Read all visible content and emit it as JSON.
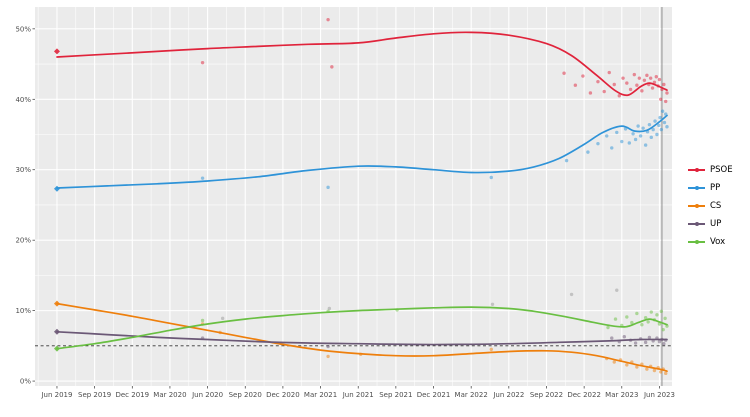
{
  "page": {
    "background": "#ffffff"
  },
  "chart_data": {
    "type": "scatter",
    "title": "",
    "xlabel": "",
    "ylabel": "",
    "legend_position": "right",
    "panel_background": "#ebebeb",
    "grid_color": "#ffffff",
    "tick_label_color": "#4d4d4d",
    "xlim": [
      -1.75,
      49.0
    ],
    "ylim": [
      -0.7,
      53.1
    ],
    "x_unit": "months since Jun 2019",
    "y_unit": "percent",
    "x_ticks": [
      {
        "month": 0,
        "label": "Jun 2019"
      },
      {
        "month": 3,
        "label": "Sep 2019"
      },
      {
        "month": 6,
        "label": "Dec 2019"
      },
      {
        "month": 9,
        "label": "Mar 2020"
      },
      {
        "month": 12,
        "label": "Jun 2020"
      },
      {
        "month": 15,
        "label": "Sep 2020"
      },
      {
        "month": 18,
        "label": "Dec 2020"
      },
      {
        "month": 21,
        "label": "Mar 2021"
      },
      {
        "month": 24,
        "label": "Jun 2021"
      },
      {
        "month": 27,
        "label": "Sep 2021"
      },
      {
        "month": 30,
        "label": "Dec 2021"
      },
      {
        "month": 33,
        "label": "Mar 2022"
      },
      {
        "month": 36,
        "label": "Jun 2022"
      },
      {
        "month": 39,
        "label": "Sep 2022"
      },
      {
        "month": 42,
        "label": "Dec 2022"
      },
      {
        "month": 45,
        "label": "Mar 2023"
      },
      {
        "month": 48,
        "label": "Jun 2023"
      }
    ],
    "y_ticks": [
      {
        "value": 0,
        "label": "0%"
      },
      {
        "value": 10,
        "label": "10%"
      },
      {
        "value": 20,
        "label": "20%"
      },
      {
        "value": 30,
        "label": "30%"
      },
      {
        "value": 40,
        "label": "40%"
      },
      {
        "value": 50,
        "label": "50%"
      }
    ],
    "reference_lines": {
      "dashed_hline_pct": 5,
      "vline_month": 48.2
    },
    "series": [
      {
        "name": "PSOE",
        "label": "PSOE",
        "color": "#e0233b",
        "start_marker": [
          0,
          46.8
        ],
        "trend": [
          [
            0,
            46.0
          ],
          [
            4,
            46.4
          ],
          [
            8,
            46.8
          ],
          [
            12,
            47.2
          ],
          [
            16,
            47.5
          ],
          [
            20,
            47.8
          ],
          [
            24,
            48.0
          ],
          [
            27,
            48.7
          ],
          [
            30,
            49.3
          ],
          [
            33,
            49.5
          ],
          [
            36,
            49.1
          ],
          [
            39,
            47.9
          ],
          [
            41,
            46.2
          ],
          [
            43,
            43.4
          ],
          [
            44.5,
            41.2
          ],
          [
            45.5,
            40.6
          ],
          [
            46.5,
            41.8
          ],
          [
            47.2,
            42.3
          ],
          [
            48,
            41.8
          ],
          [
            48.6,
            41.3
          ]
        ],
        "polls": [
          [
            11.6,
            45.2
          ],
          [
            21.6,
            51.3
          ],
          [
            21.9,
            44.6
          ],
          [
            40.4,
            43.7
          ],
          [
            41.3,
            42.0
          ],
          [
            41.9,
            43.3
          ],
          [
            42.5,
            40.9
          ],
          [
            43.1,
            42.5
          ],
          [
            43.6,
            41.1
          ],
          [
            44.0,
            43.8
          ],
          [
            44.4,
            42.1
          ],
          [
            44.8,
            40.5
          ],
          [
            45.1,
            43.0
          ],
          [
            45.4,
            42.3
          ],
          [
            45.7,
            41.4
          ],
          [
            46.0,
            43.5
          ],
          [
            46.2,
            42.0
          ],
          [
            46.4,
            43.0
          ],
          [
            46.6,
            41.2
          ],
          [
            46.8,
            42.7
          ],
          [
            47.0,
            43.4
          ],
          [
            47.15,
            42.1
          ],
          [
            47.3,
            43.0
          ],
          [
            47.45,
            41.6
          ],
          [
            47.6,
            42.4
          ],
          [
            47.75,
            43.2
          ],
          [
            47.9,
            41.9
          ],
          [
            48.0,
            42.8
          ],
          [
            48.1,
            40.0
          ],
          [
            48.2,
            41.4
          ],
          [
            48.35,
            42.1
          ],
          [
            48.5,
            39.7
          ],
          [
            48.6,
            40.9
          ]
        ]
      },
      {
        "name": "PP",
        "label": "PP",
        "color": "#2e93d8",
        "start_marker": [
          0,
          27.3
        ],
        "trend": [
          [
            0,
            27.4
          ],
          [
            4,
            27.7
          ],
          [
            8,
            28.0
          ],
          [
            12,
            28.4
          ],
          [
            16,
            29.0
          ],
          [
            20,
            29.9
          ],
          [
            24,
            30.5
          ],
          [
            27,
            30.4
          ],
          [
            30,
            30.0
          ],
          [
            33,
            29.6
          ],
          [
            36,
            29.8
          ],
          [
            38,
            30.4
          ],
          [
            40,
            31.6
          ],
          [
            42,
            33.6
          ],
          [
            43.5,
            35.3
          ],
          [
            45,
            36.2
          ],
          [
            46,
            35.5
          ],
          [
            47,
            35.6
          ],
          [
            48,
            36.8
          ],
          [
            48.6,
            37.7
          ]
        ],
        "polls": [
          [
            11.6,
            28.8
          ],
          [
            21.6,
            27.5
          ],
          [
            34.6,
            28.9
          ],
          [
            40.6,
            31.3
          ],
          [
            42.3,
            32.5
          ],
          [
            43.1,
            33.7
          ],
          [
            43.8,
            34.8
          ],
          [
            44.2,
            33.1
          ],
          [
            44.6,
            35.3
          ],
          [
            45.0,
            34.0
          ],
          [
            45.3,
            35.8
          ],
          [
            45.6,
            33.8
          ],
          [
            45.9,
            35.1
          ],
          [
            46.1,
            34.3
          ],
          [
            46.3,
            36.2
          ],
          [
            46.5,
            34.8
          ],
          [
            46.7,
            35.9
          ],
          [
            46.9,
            33.5
          ],
          [
            47.05,
            35.4
          ],
          [
            47.2,
            36.4
          ],
          [
            47.35,
            34.6
          ],
          [
            47.5,
            35.7
          ],
          [
            47.65,
            36.9
          ],
          [
            47.8,
            35.0
          ],
          [
            47.95,
            36.3
          ],
          [
            48.05,
            37.4
          ],
          [
            48.15,
            35.7
          ],
          [
            48.25,
            38.3
          ],
          [
            48.4,
            36.7
          ],
          [
            48.5,
            37.9
          ],
          [
            48.6,
            36.1
          ]
        ]
      },
      {
        "name": "CS",
        "label": "CS",
        "color": "#ee7f0c",
        "start_marker": [
          0,
          11.0
        ],
        "trend": [
          [
            0,
            11.0
          ],
          [
            3,
            10.1
          ],
          [
            6,
            9.2
          ],
          [
            9,
            8.2
          ],
          [
            12,
            7.2
          ],
          [
            15,
            6.2
          ],
          [
            18,
            5.2
          ],
          [
            21,
            4.4
          ],
          [
            24,
            3.9
          ],
          [
            27,
            3.6
          ],
          [
            30,
            3.6
          ],
          [
            33,
            3.9
          ],
          [
            36,
            4.2
          ],
          [
            39,
            4.3
          ],
          [
            41,
            4.1
          ],
          [
            43,
            3.6
          ],
          [
            45,
            2.8
          ],
          [
            46.5,
            2.2
          ],
          [
            48,
            1.7
          ],
          [
            48.6,
            1.4
          ]
        ],
        "polls": [
          [
            11.6,
            8.1
          ],
          [
            13.0,
            6.9
          ],
          [
            21.6,
            3.5
          ],
          [
            24.2,
            3.8
          ],
          [
            34.6,
            4.5
          ],
          [
            43.8,
            3.2
          ],
          [
            44.4,
            2.7
          ],
          [
            44.9,
            3.0
          ],
          [
            45.4,
            2.3
          ],
          [
            45.8,
            2.7
          ],
          [
            46.2,
            2.0
          ],
          [
            46.6,
            2.4
          ],
          [
            47.0,
            1.7
          ],
          [
            47.3,
            2.1
          ],
          [
            47.6,
            1.5
          ],
          [
            47.9,
            1.9
          ],
          [
            48.1,
            1.3
          ],
          [
            48.3,
            1.7
          ],
          [
            48.5,
            1.1
          ]
        ]
      },
      {
        "name": "UP",
        "label": "UP",
        "color": "#6b5876",
        "start_marker": [
          0,
          7.0
        ],
        "trend": [
          [
            0,
            7.0
          ],
          [
            4,
            6.6
          ],
          [
            8,
            6.2
          ],
          [
            12,
            5.9
          ],
          [
            16,
            5.6
          ],
          [
            20,
            5.4
          ],
          [
            24,
            5.3
          ],
          [
            28,
            5.2
          ],
          [
            32,
            5.2
          ],
          [
            36,
            5.3
          ],
          [
            40,
            5.5
          ],
          [
            44,
            5.7
          ],
          [
            46.5,
            5.9
          ],
          [
            48.6,
            5.9
          ]
        ],
        "polls": [
          [
            11.6,
            6.1
          ],
          [
            21.6,
            4.9
          ],
          [
            44.2,
            6.1
          ],
          [
            44.8,
            5.6
          ],
          [
            45.2,
            6.3
          ],
          [
            45.7,
            5.8
          ],
          [
            46.1,
            5.4
          ],
          [
            46.5,
            6.0
          ],
          [
            46.9,
            5.5
          ],
          [
            47.2,
            6.2
          ],
          [
            47.5,
            5.7
          ],
          [
            47.8,
            6.1
          ],
          [
            48.0,
            5.6
          ],
          [
            48.2,
            5.9
          ],
          [
            48.35,
            5.3
          ],
          [
            48.5,
            5.8
          ]
        ]
      },
      {
        "name": "Vox",
        "label": "Vox",
        "color": "#69bf42",
        "start_marker": [
          0,
          4.6
        ],
        "trend": [
          [
            0,
            4.6
          ],
          [
            3,
            5.3
          ],
          [
            6,
            6.2
          ],
          [
            9,
            7.2
          ],
          [
            12,
            8.1
          ],
          [
            15,
            8.8
          ],
          [
            18,
            9.3
          ],
          [
            21,
            9.7
          ],
          [
            24,
            10.0
          ],
          [
            27,
            10.2
          ],
          [
            30,
            10.4
          ],
          [
            33,
            10.5
          ],
          [
            36,
            10.3
          ],
          [
            38,
            9.9
          ],
          [
            40,
            9.3
          ],
          [
            42,
            8.6
          ],
          [
            44,
            7.9
          ],
          [
            45.3,
            7.7
          ],
          [
            46.3,
            8.3
          ],
          [
            47.2,
            8.8
          ],
          [
            48,
            8.4
          ],
          [
            48.6,
            8.0
          ]
        ],
        "polls": [
          [
            11.6,
            8.6
          ],
          [
            21.6,
            9.9
          ],
          [
            27.1,
            10.1
          ],
          [
            43.9,
            7.6
          ],
          [
            44.5,
            8.8
          ],
          [
            45.0,
            7.9
          ],
          [
            45.4,
            9.1
          ],
          [
            45.8,
            8.3
          ],
          [
            46.2,
            9.6
          ],
          [
            46.6,
            8.0
          ],
          [
            46.9,
            9.0
          ],
          [
            47.1,
            8.4
          ],
          [
            47.35,
            9.8
          ],
          [
            47.6,
            8.7
          ],
          [
            47.8,
            9.4
          ],
          [
            48.0,
            8.1
          ],
          [
            48.15,
            9.9
          ],
          [
            48.3,
            7.3
          ],
          [
            48.45,
            8.9
          ],
          [
            48.6,
            7.8
          ]
        ]
      }
    ],
    "extra_points": {
      "color": "#9a9a9a",
      "points": [
        [
          13.2,
          8.9
        ],
        [
          21.7,
          10.3
        ],
        [
          34.7,
          10.9
        ],
        [
          41.0,
          12.3
        ],
        [
          44.6,
          12.9
        ]
      ]
    }
  }
}
